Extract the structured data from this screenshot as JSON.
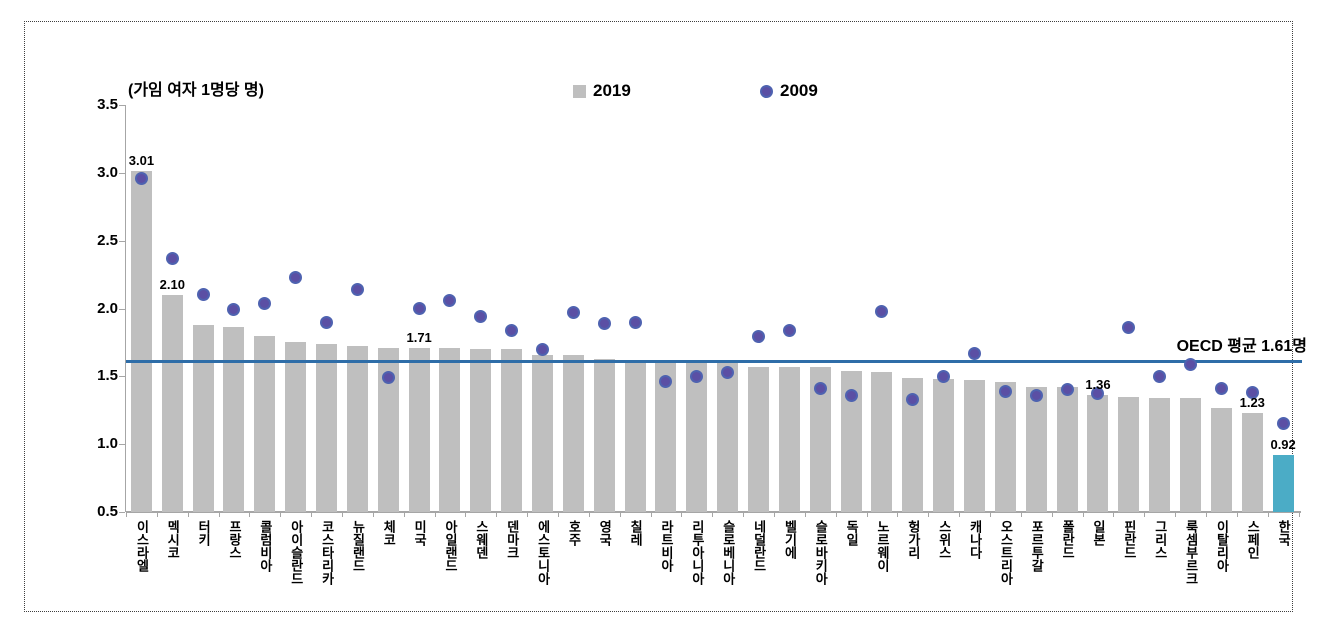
{
  "unit_label": "(가임 여자 1명당 명)",
  "legend": [
    {
      "label": "2019",
      "marker": "square",
      "color": "#bfbfbf"
    },
    {
      "label": "2009",
      "marker": "circle",
      "color": "#5b4fa4"
    }
  ],
  "colors": {
    "bar": "#bfbfbf",
    "highlight_bar": "#4bacc6",
    "dot": "#5b4fa4",
    "dot_border": "#4e62b0",
    "reference_line": "#2e6da8",
    "axis": "#a6a6a6"
  },
  "chart_data": {
    "type": "bar",
    "title": "",
    "ylabel": "(가임 여자 1명당 명)",
    "ylim": [
      0.5,
      3.5
    ],
    "yticks": [
      "3.5",
      "3.0",
      "2.5",
      "2.0",
      "1.5",
      "1.0",
      "0.5"
    ],
    "grid": false,
    "legend_position": "top-center",
    "categories": [
      "이스라엘",
      "멕시코",
      "터키",
      "프랑스",
      "콜럼비아",
      "아이슬란드",
      "코스타리카",
      "뉴질랜드",
      "체코",
      "미국",
      "아일랜드",
      "스웨덴",
      "덴마크",
      "에스토니아",
      "호주",
      "영국",
      "칠레",
      "라트비아",
      "리투아니아",
      "슬로베니아",
      "네덜란드",
      "벨기에",
      "슬로바키아",
      "독일",
      "노르웨이",
      "헝가리",
      "스위스",
      "캐나다",
      "오스트리아",
      "포르투갈",
      "폴란드",
      "일본",
      "핀란드",
      "그리스",
      "룩셈부르크",
      "이탈리아",
      "스페인",
      "한국"
    ],
    "series": [
      {
        "name": "2019",
        "type": "bar",
        "values": [
          3.01,
          2.1,
          1.88,
          1.86,
          1.8,
          1.75,
          1.74,
          1.72,
          1.71,
          1.71,
          1.71,
          1.7,
          1.7,
          1.66,
          1.66,
          1.63,
          1.62,
          1.61,
          1.61,
          1.61,
          1.57,
          1.57,
          1.57,
          1.54,
          1.53,
          1.49,
          1.48,
          1.47,
          1.46,
          1.42,
          1.42,
          1.36,
          1.35,
          1.34,
          1.34,
          1.27,
          1.23,
          0.92
        ]
      },
      {
        "name": "2009",
        "type": "scatter",
        "values": [
          2.96,
          2.37,
          2.1,
          1.99,
          2.04,
          2.23,
          1.9,
          2.14,
          1.49,
          2.0,
          2.06,
          1.94,
          1.84,
          1.7,
          1.97,
          1.89,
          1.9,
          1.46,
          1.5,
          1.53,
          1.79,
          1.84,
          1.41,
          1.36,
          1.98,
          1.33,
          1.5,
          1.67,
          1.39,
          1.36,
          1.4,
          1.37,
          1.86,
          1.5,
          1.59,
          1.41,
          1.38,
          1.15
        ]
      }
    ],
    "highlight_index": 37,
    "bar_value_labels": [
      {
        "index": 0,
        "text": "3.01"
      },
      {
        "index": 1,
        "text": "2.10"
      },
      {
        "index": 9,
        "text": "1.71"
      },
      {
        "index": 31,
        "text": "1.36"
      },
      {
        "index": 36,
        "text": "1.23"
      },
      {
        "index": 37,
        "text": "0.92"
      }
    ],
    "reference_line": {
      "value": 1.61,
      "label": "OECD 평균 1.61명"
    }
  }
}
